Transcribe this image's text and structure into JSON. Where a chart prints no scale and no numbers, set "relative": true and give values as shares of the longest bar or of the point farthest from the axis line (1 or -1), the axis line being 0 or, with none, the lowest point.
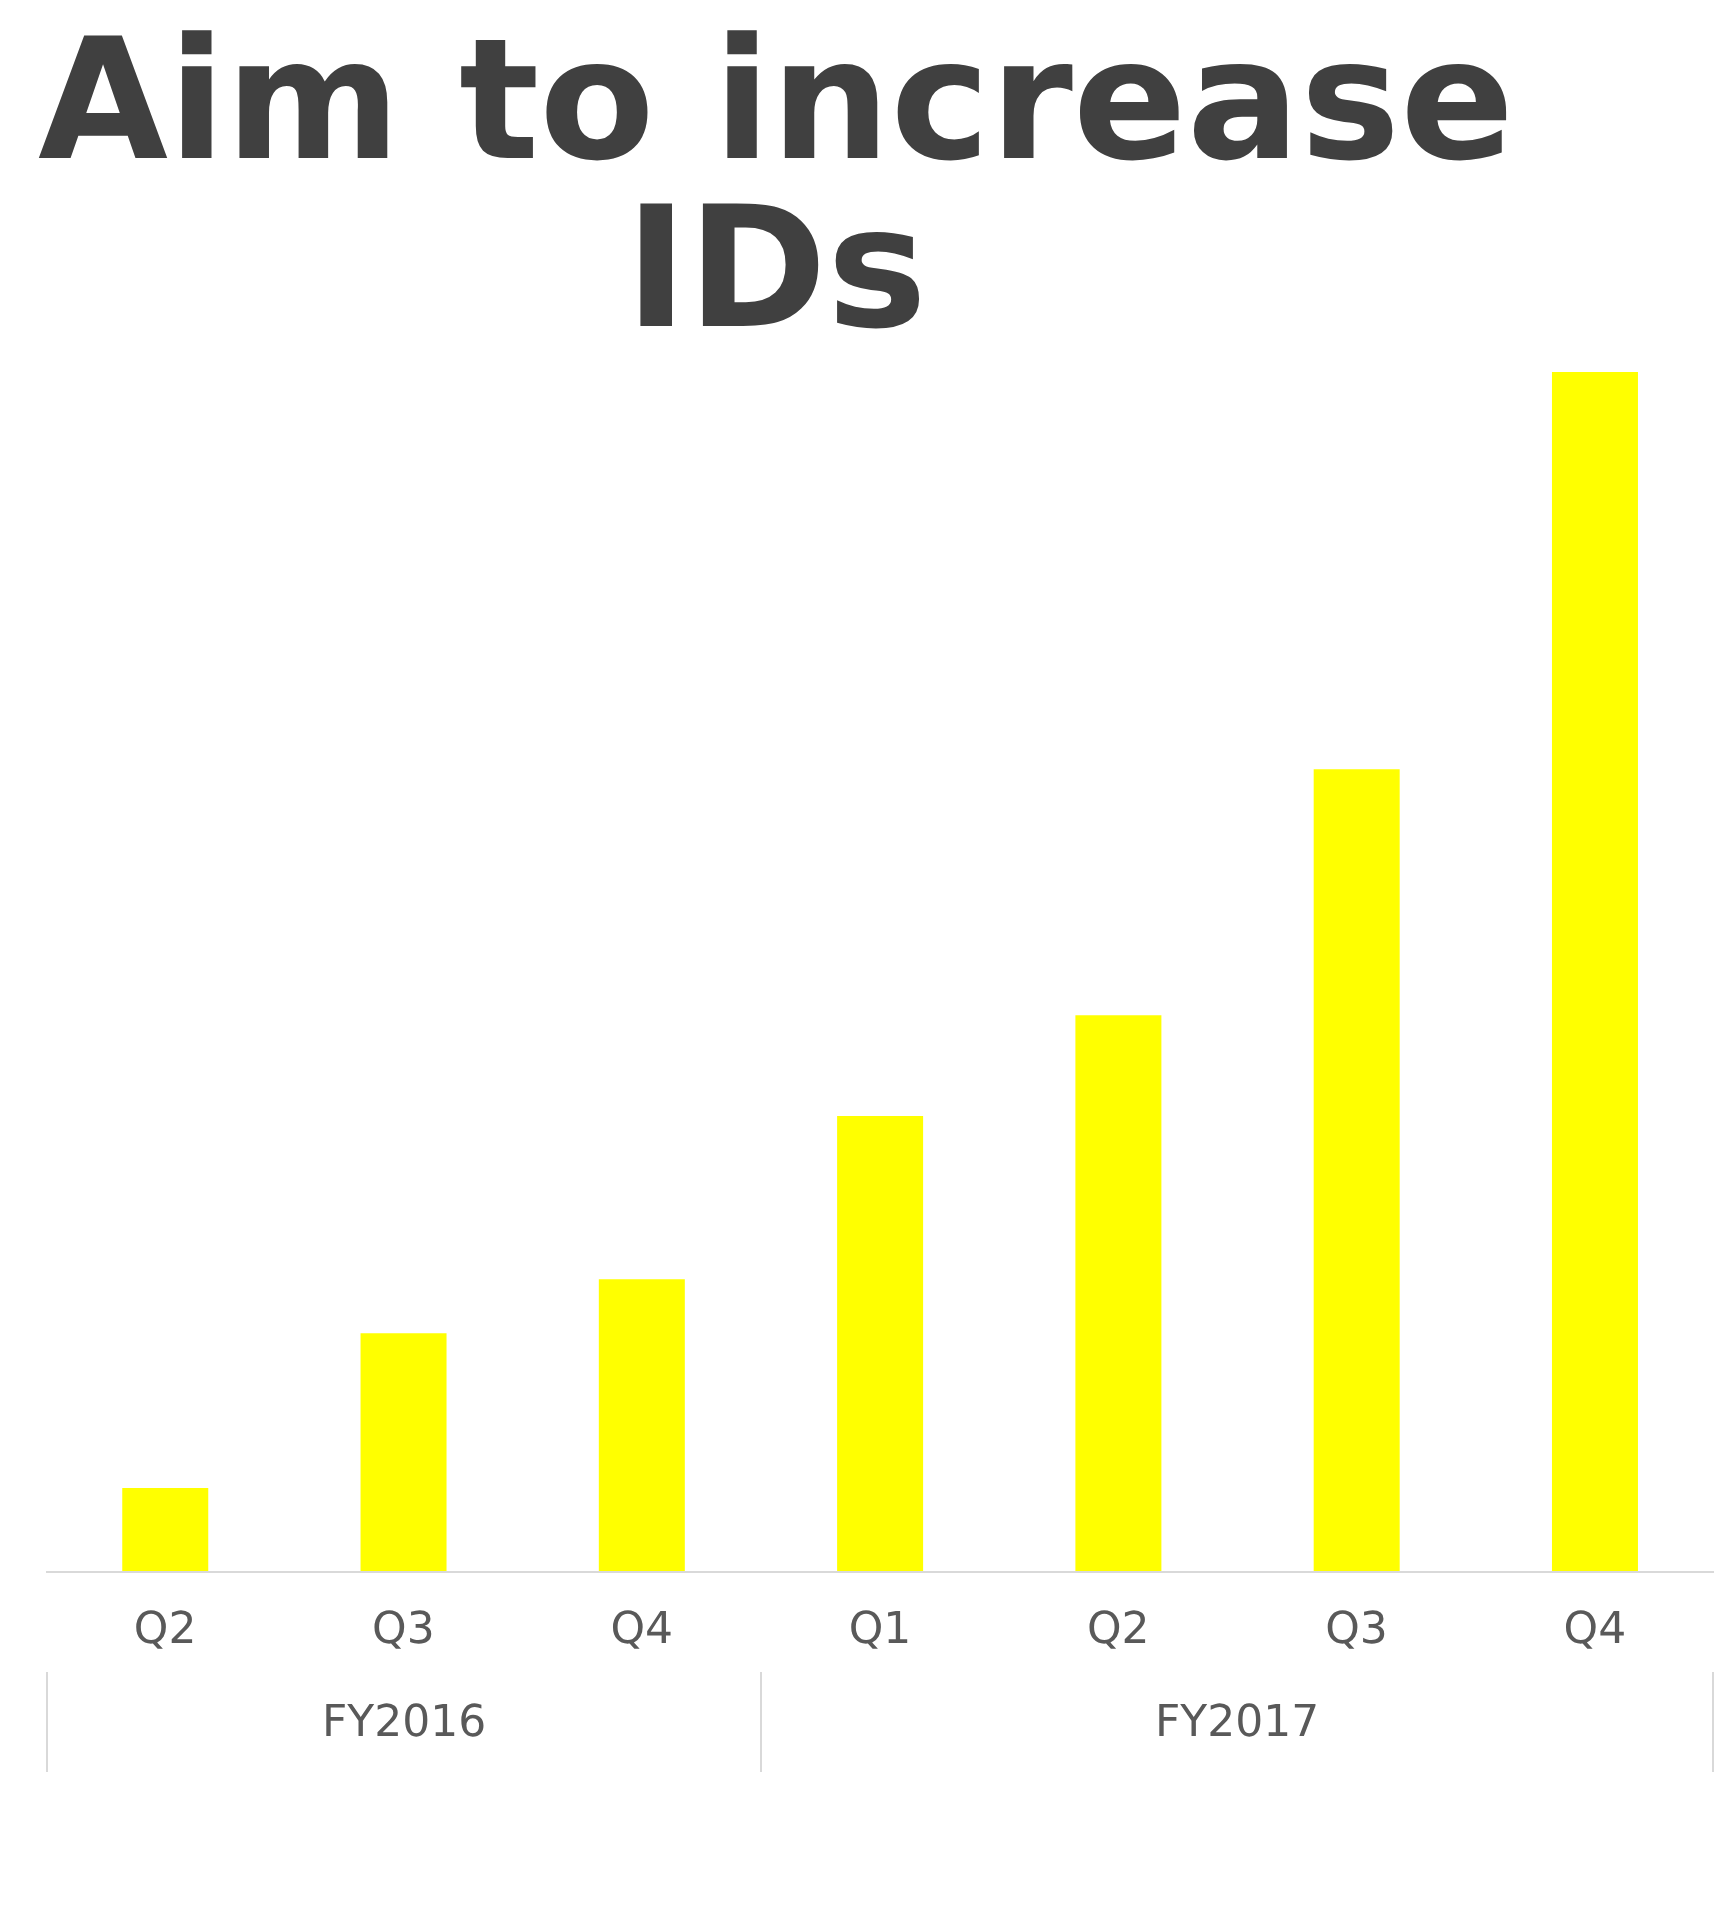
{
  "chart_data": {
    "type": "bar",
    "title": "Aim to increase IDs",
    "categories": [
      "Q2",
      "Q3",
      "Q4",
      "Q1",
      "Q2",
      "Q3",
      "Q4"
    ],
    "values": [
      0.07,
      0.199,
      0.244,
      0.38,
      0.464,
      0.669,
      1
    ],
    "color": "#ffff00",
    "relative": true,
    "annotations": [
      "FY2016",
      "FY2017"
    ]
  }
}
